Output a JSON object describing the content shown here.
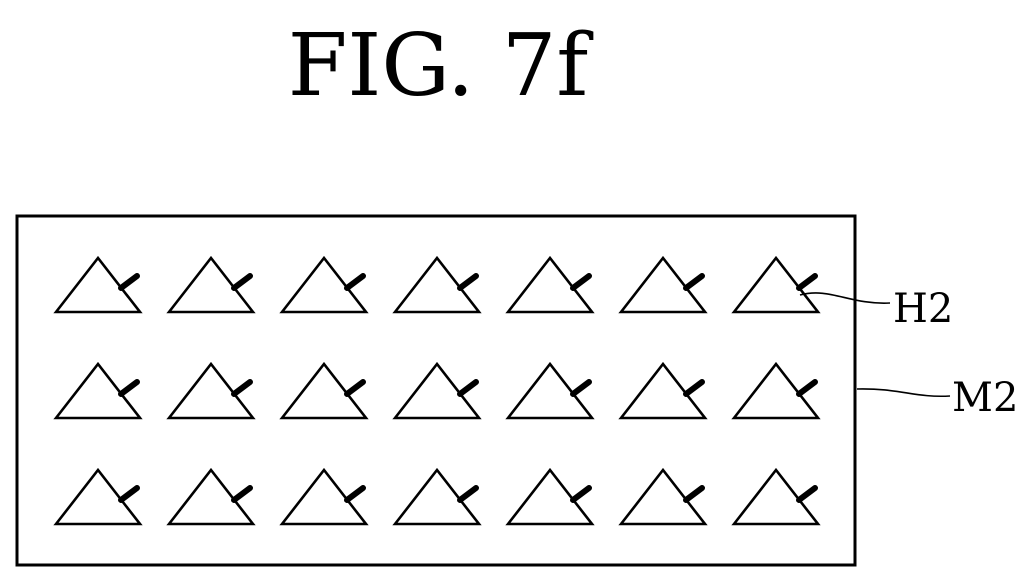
{
  "figure": {
    "title": "FIG. 7f",
    "labels": {
      "h2": "H2",
      "m2": "M2"
    }
  },
  "mask": {
    "rows": 3,
    "columns": 7,
    "hole_shape": "triangle-with-tab"
  }
}
